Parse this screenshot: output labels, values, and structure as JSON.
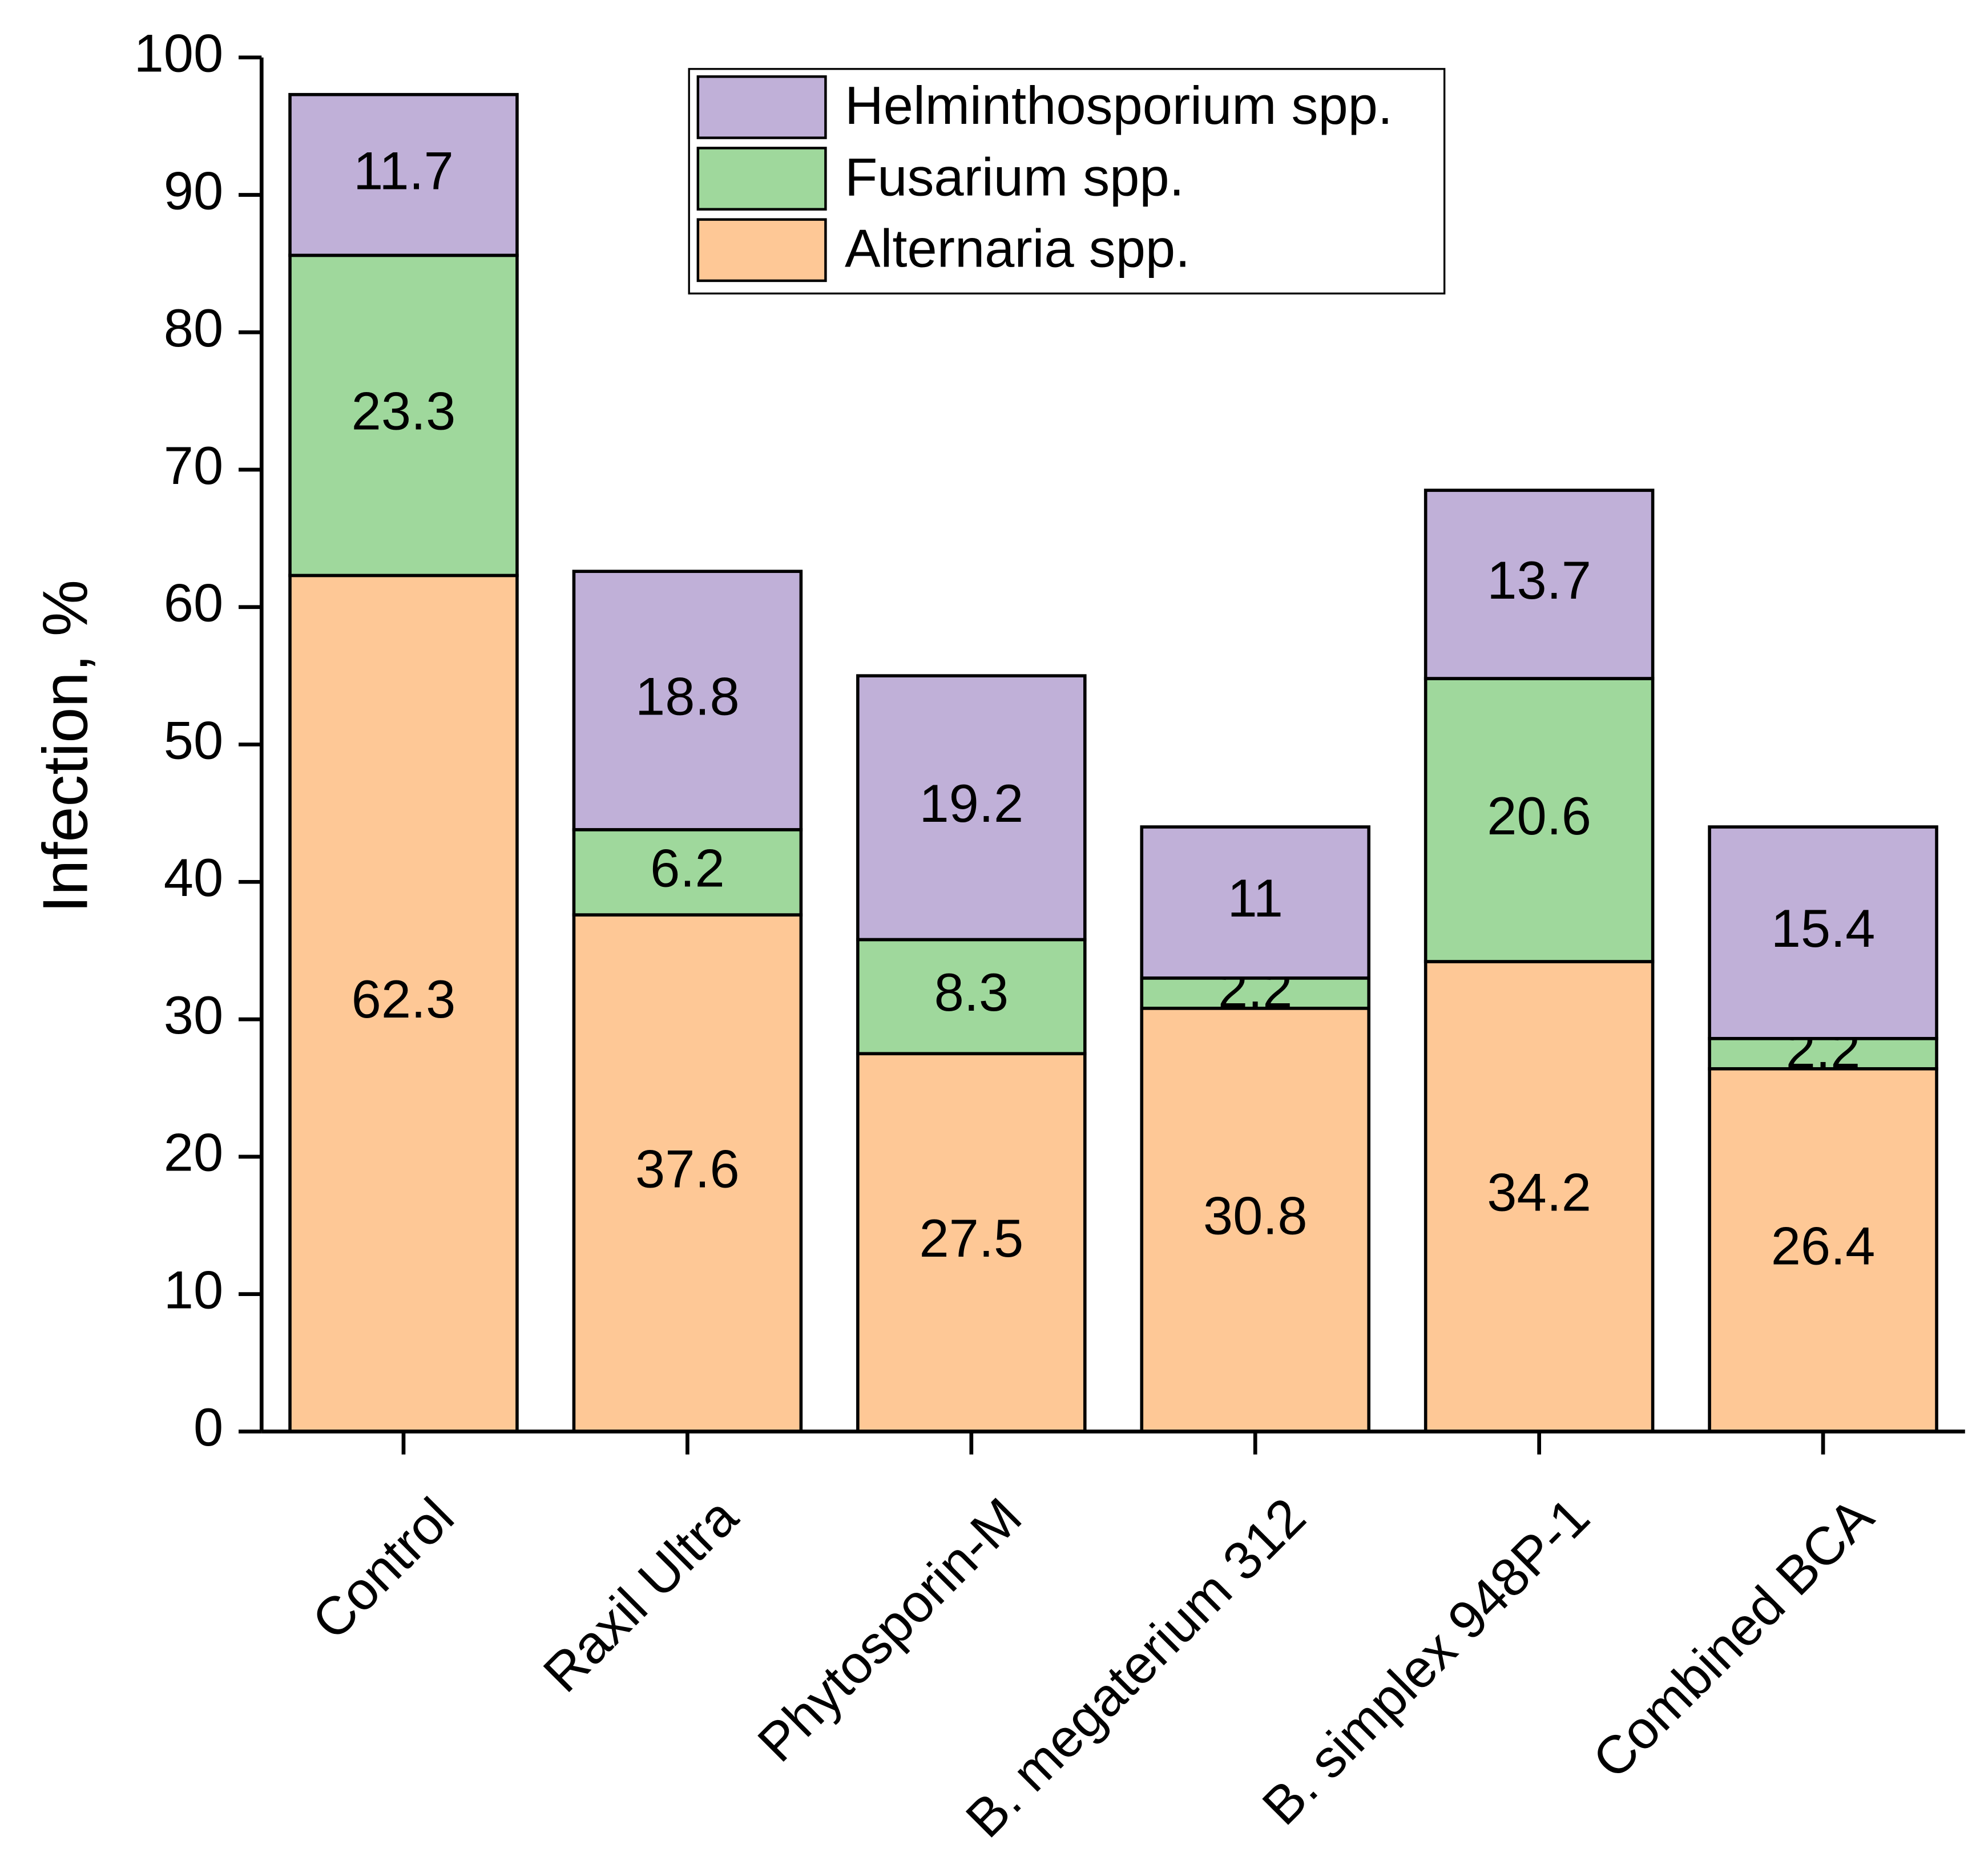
{
  "chart_data": {
    "type": "stacked_bar",
    "y_label": "Infection, %",
    "categories": [
      "Control",
      "Raxil Ultra",
      "Phytosporin-M",
      "B. megaterium 312",
      "B. simplex 948P-1",
      "Combined BCA"
    ],
    "series": [
      {
        "name": "Alternaria spp.",
        "color": "#fec896",
        "values": [
          62.3,
          37.6,
          27.5,
          30.8,
          34.2,
          26.4
        ]
      },
      {
        "name": "Fusarium spp.",
        "color": "#9fd89c",
        "values": [
          23.3,
          6.2,
          8.3,
          2.2,
          20.6,
          2.2
        ]
      },
      {
        "name": "Helminthosporium spp.",
        "color": "#c0b0d8",
        "values": [
          11.7,
          18.8,
          19.2,
          11,
          13.7,
          15.4
        ]
      }
    ],
    "ylim": [
      0,
      100
    ],
    "yticks": [
      0,
      10,
      20,
      30,
      40,
      50,
      60,
      70,
      80,
      90,
      100
    ],
    "legend": "top-right"
  }
}
